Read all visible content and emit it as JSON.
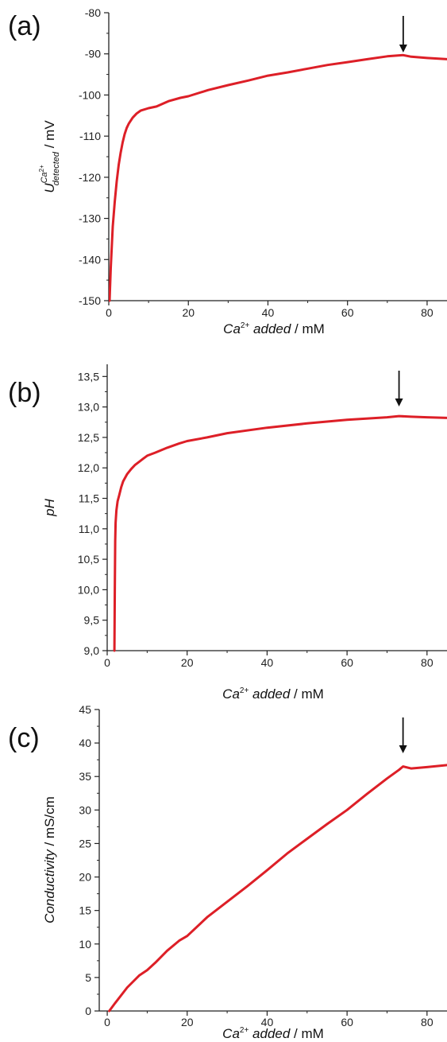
{
  "chart_data": [
    {
      "type": "line",
      "panel_label": "(a)",
      "xlabel": {
        "prefix": "Ca",
        "sup": "2+",
        "italic_text": " added",
        "suffix": " / mM"
      },
      "ylabel": {
        "base": "U",
        "sup": "Ca",
        "sup_sup": "2+",
        "sub": "detected",
        "suffix": " / mV"
      },
      "xlim": [
        0,
        85
      ],
      "ylim": [
        -150,
        -80
      ],
      "xticks": [
        {
          "value": 0,
          "label": "0"
        },
        {
          "value": 20,
          "label": "20"
        },
        {
          "value": 40,
          "label": "40"
        },
        {
          "value": 60,
          "label": "60"
        },
        {
          "value": 80,
          "label": "80"
        }
      ],
      "yticks": [
        {
          "value": -150,
          "label": "-150"
        },
        {
          "value": -140,
          "label": "-140"
        },
        {
          "value": -130,
          "label": "-130"
        },
        {
          "value": -120,
          "label": "-120"
        },
        {
          "value": -110,
          "label": "-110"
        },
        {
          "value": -100,
          "label": "-100"
        },
        {
          "value": -90,
          "label": "-90"
        },
        {
          "value": -80,
          "label": "-80"
        }
      ],
      "grid": false,
      "line_color": "#dd1f27",
      "arrow_x": 74,
      "series": [
        {
          "x": [
            0.2,
            0.5,
            1,
            1.5,
            2,
            2.5,
            3,
            3.5,
            4,
            4.5,
            5,
            6,
            7,
            8,
            10,
            12,
            15,
            18,
            20,
            25,
            30,
            35,
            40,
            45,
            50,
            55,
            60,
            65,
            70,
            74,
            76,
            80,
            85
          ],
          "y": [
            -150,
            -142,
            -132,
            -126,
            -121,
            -117,
            -114,
            -111.5,
            -109.5,
            -108,
            -107,
            -105.5,
            -104.5,
            -103.8,
            -103.2,
            -102.8,
            -101.5,
            -100.7,
            -100.3,
            -98.8,
            -97.6,
            -96.5,
            -95.3,
            -94.5,
            -93.6,
            -92.7,
            -92,
            -91.3,
            -90.6,
            -90.3,
            -90.7,
            -91,
            -91.3
          ]
        }
      ]
    },
    {
      "type": "line",
      "panel_label": "(b)",
      "xlabel": {
        "prefix": "Ca",
        "sup": "2+",
        "italic_text": " added",
        "suffix": " / mM"
      },
      "ylabel": {
        "italic_text": "pH"
      },
      "xlim": [
        0,
        85
      ],
      "ylim": [
        9.0,
        13.7
      ],
      "xticks": [
        {
          "value": 0,
          "label": "0"
        },
        {
          "value": 20,
          "label": "20"
        },
        {
          "value": 40,
          "label": "40"
        },
        {
          "value": 60,
          "label": "60"
        },
        {
          "value": 80,
          "label": "80"
        }
      ],
      "yticks": [
        {
          "value": 9.0,
          "label": "9,0"
        },
        {
          "value": 9.5,
          "label": "9,5"
        },
        {
          "value": 10.0,
          "label": "10,0"
        },
        {
          "value": 10.5,
          "label": "10,5"
        },
        {
          "value": 11.0,
          "label": "11,0"
        },
        {
          "value": 11.5,
          "label": "11,5"
        },
        {
          "value": 12.0,
          "label": "12,0"
        },
        {
          "value": 12.5,
          "label": "12,5"
        },
        {
          "value": 13.0,
          "label": "13,0"
        },
        {
          "value": 13.5,
          "label": "13,5"
        }
      ],
      "grid": false,
      "line_color": "#dd1f27",
      "arrow_x": 73,
      "series": [
        {
          "x": [
            1.8,
            1.9,
            2,
            2.1,
            2.3,
            2.6,
            3,
            3.5,
            4,
            5,
            6,
            7,
            8,
            9,
            10,
            12,
            15,
            18,
            20,
            25,
            30,
            40,
            50,
            60,
            70,
            73,
            76,
            80,
            85
          ],
          "y": [
            9.0,
            10.0,
            10.8,
            11.1,
            11.3,
            11.45,
            11.55,
            11.68,
            11.78,
            11.9,
            11.98,
            12.05,
            12.1,
            12.15,
            12.2,
            12.25,
            12.33,
            12.4,
            12.44,
            12.5,
            12.57,
            12.66,
            12.73,
            12.79,
            12.83,
            12.85,
            12.84,
            12.83,
            12.82
          ]
        }
      ]
    },
    {
      "type": "line",
      "panel_label": "(c)",
      "xlabel": {
        "prefix": "Ca",
        "sup": "2+",
        "italic_text": " added",
        "suffix": " / mM"
      },
      "ylabel": {
        "italic_text": "Conductivity",
        "suffix": " / mS/cm"
      },
      "xlim": [
        -2,
        85
      ],
      "ylim": [
        0,
        45
      ],
      "xticks": [
        {
          "value": 0,
          "label": "0"
        },
        {
          "value": 20,
          "label": "20"
        },
        {
          "value": 40,
          "label": "40"
        },
        {
          "value": 60,
          "label": "60"
        },
        {
          "value": 80,
          "label": "80"
        }
      ],
      "yticks": [
        {
          "value": 0,
          "label": "0"
        },
        {
          "value": 5,
          "label": "5"
        },
        {
          "value": 10,
          "label": "10"
        },
        {
          "value": 15,
          "label": "15"
        },
        {
          "value": 20,
          "label": "20"
        },
        {
          "value": 25,
          "label": "25"
        },
        {
          "value": 30,
          "label": "30"
        },
        {
          "value": 35,
          "label": "35"
        },
        {
          "value": 40,
          "label": "40"
        },
        {
          "value": 45,
          "label": "45"
        }
      ],
      "grid": false,
      "line_color": "#dd1f27",
      "arrow_x": 74,
      "series": [
        {
          "x": [
            0.5,
            2,
            5,
            8,
            10,
            12,
            15,
            18,
            20,
            25,
            30,
            35,
            40,
            45,
            50,
            55,
            60,
            65,
            70,
            73,
            74,
            76,
            78,
            80,
            85
          ],
          "y": [
            0,
            1.2,
            3.5,
            5.3,
            6.1,
            7.2,
            9.0,
            10.5,
            11.2,
            14.0,
            16.3,
            18.6,
            21.0,
            23.5,
            25.7,
            27.9,
            30.0,
            32.4,
            34.7,
            36.0,
            36.5,
            36.2,
            36.3,
            36.4,
            36.7
          ]
        }
      ]
    }
  ]
}
